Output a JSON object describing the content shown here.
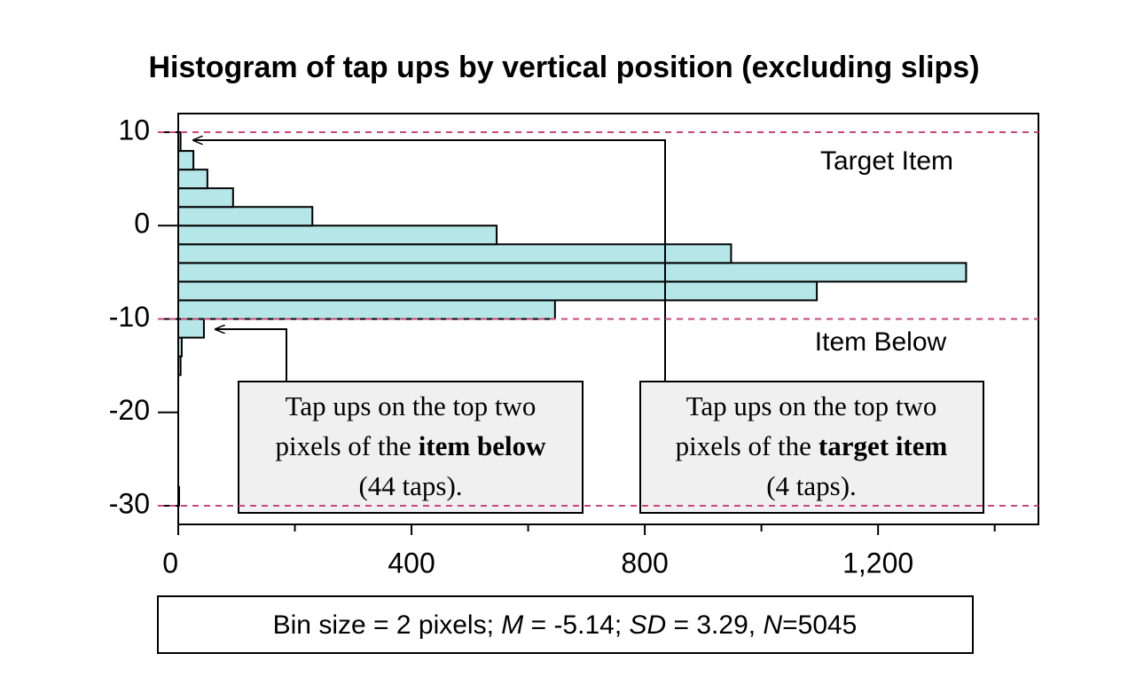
{
  "chart_data": {
    "type": "histogram",
    "orientation": "horizontal",
    "title": "Histogram of tap ups by vertical position (excluding slips)",
    "bins": [
      -30,
      -28,
      -26,
      -24,
      -22,
      -20,
      -18,
      -16,
      -14,
      -12,
      -10,
      -8,
      -6,
      -4,
      -2,
      0,
      2,
      4,
      6,
      8,
      10
    ],
    "counts": [
      1,
      0,
      0,
      0,
      0,
      0,
      0,
      4,
      6,
      44,
      646,
      1095,
      1351,
      948,
      546,
      230,
      94,
      50,
      26,
      4
    ],
    "color": "#b5e6e8",
    "xlim": [
      0,
      1475
    ],
    "xticks": [
      0,
      400,
      800,
      {
        "value": 1200,
        "label": "1,200"
      }
    ],
    "minor_xticks": [
      200,
      600,
      1000,
      1400
    ],
    "ylim": [
      -32,
      12
    ],
    "yticks": [
      10,
      0,
      -10,
      -20,
      -30
    ],
    "reference_lines": {
      "values": [
        10,
        -10,
        -30
      ],
      "color": "#c8467c"
    },
    "region_labels": [
      "Target Item",
      "Item Below"
    ],
    "annotations": [
      {
        "line1": "Tap ups on the top two",
        "line2": "pixels of the",
        "line2_bold": "item below",
        "line3": "(44 taps)."
      },
      {
        "line1": "Tap ups on the top two",
        "line2": "pixels of the",
        "line2_bold": "target item",
        "line3": "(4 taps)."
      }
    ],
    "footer": [
      {
        "text": "Bin size = 2 pixels; ",
        "italic": false
      },
      {
        "text": "M",
        "italic": true
      },
      {
        "text": " = -5.14; ",
        "italic": false
      },
      {
        "text": "SD",
        "italic": true
      },
      {
        "text": " = 3.29, ",
        "italic": false
      },
      {
        "text": "N",
        "italic": true
      },
      {
        "text": "=5045",
        "italic": false
      }
    ]
  }
}
